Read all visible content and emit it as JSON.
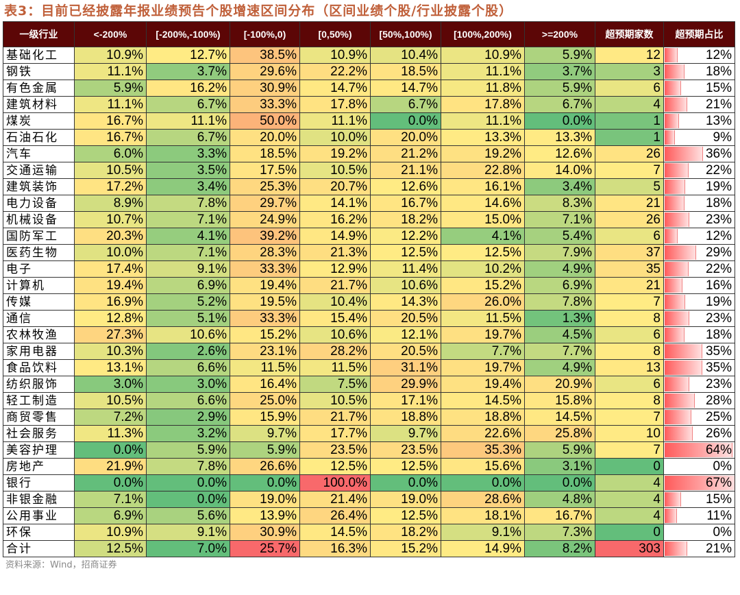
{
  "title": "表3：目前已经披露年报业绩预告个股增速区间分布（区间业绩个股/行业披露个股）",
  "source": "资料来源：Wind，招商证券",
  "colors": {
    "header_bg": "#5C0606",
    "scale_low": "#63BE7B",
    "scale_mid": "#FFEB84",
    "scale_high": "#F8696B",
    "bar": "#FF5A5A"
  },
  "headers": [
    "一级行业",
    "<-200%",
    "[-200%,-100%)",
    "[-100%,0)",
    "[0,50%)",
    "[50%,100%)",
    "[100%,200%)",
    ">=200%",
    "超预期家数",
    "超预期占比"
  ],
  "rows": [
    [
      "基础化工",
      "10.9%",
      "12.7%",
      "38.5%",
      "10.9%",
      "10.4%",
      "10.9%",
      "5.9%",
      "12",
      "12%"
    ],
    [
      "钢铁",
      "11.1%",
      "3.7%",
      "29.6%",
      "22.2%",
      "18.5%",
      "11.1%",
      "3.7%",
      "3",
      "18%"
    ],
    [
      "有色金属",
      "5.9%",
      "16.2%",
      "30.9%",
      "14.7%",
      "14.7%",
      "11.8%",
      "5.9%",
      "6",
      "15%"
    ],
    [
      "建筑材料",
      "11.1%",
      "6.7%",
      "33.3%",
      "17.8%",
      "6.7%",
      "17.8%",
      "6.7%",
      "4",
      "21%"
    ],
    [
      "煤炭",
      "16.7%",
      "11.1%",
      "50.0%",
      "11.1%",
      "0.0%",
      "11.1%",
      "0.0%",
      "1",
      "13%"
    ],
    [
      "石油石化",
      "16.7%",
      "6.7%",
      "20.0%",
      "10.0%",
      "20.0%",
      "13.3%",
      "13.3%",
      "1",
      "9%"
    ],
    [
      "汽车",
      "6.0%",
      "3.3%",
      "18.5%",
      "19.2%",
      "21.2%",
      "19.2%",
      "12.6%",
      "26",
      "36%"
    ],
    [
      "交通运输",
      "10.5%",
      "3.5%",
      "17.5%",
      "10.5%",
      "21.1%",
      "22.8%",
      "14.0%",
      "7",
      "22%"
    ],
    [
      "建筑装饰",
      "17.2%",
      "3.4%",
      "25.3%",
      "20.7%",
      "12.6%",
      "16.1%",
      "3.4%",
      "5",
      "19%"
    ],
    [
      "电力设备",
      "8.9%",
      "7.8%",
      "29.7%",
      "14.1%",
      "16.7%",
      "14.6%",
      "8.3%",
      "21",
      "18%"
    ],
    [
      "机械设备",
      "10.7%",
      "7.1%",
      "24.9%",
      "16.2%",
      "18.2%",
      "15.0%",
      "7.1%",
      "26",
      "23%"
    ],
    [
      "国防军工",
      "20.3%",
      "4.1%",
      "39.2%",
      "14.9%",
      "12.2%",
      "4.1%",
      "5.4%",
      "6",
      "12%"
    ],
    [
      "医药生物",
      "10.0%",
      "7.1%",
      "28.3%",
      "21.3%",
      "12.5%",
      "12.5%",
      "7.9%",
      "37",
      "29%"
    ],
    [
      "电子",
      "17.4%",
      "9.1%",
      "33.3%",
      "12.9%",
      "11.4%",
      "10.2%",
      "4.9%",
      "35",
      "22%"
    ],
    [
      "计算机",
      "19.4%",
      "6.9%",
      "19.4%",
      "21.7%",
      "10.6%",
      "15.2%",
      "6.9%",
      "21",
      "16%"
    ],
    [
      "传媒",
      "16.9%",
      "5.2%",
      "19.5%",
      "10.4%",
      "14.3%",
      "26.0%",
      "7.8%",
      "7",
      "19%"
    ],
    [
      "通信",
      "12.8%",
      "5.1%",
      "33.3%",
      "15.4%",
      "20.5%",
      "11.5%",
      "1.3%",
      "8",
      "23%"
    ],
    [
      "农林牧渔",
      "27.3%",
      "10.6%",
      "15.2%",
      "10.6%",
      "12.1%",
      "19.7%",
      "4.5%",
      "6",
      "18%"
    ],
    [
      "家用电器",
      "10.3%",
      "2.6%",
      "23.1%",
      "28.2%",
      "20.5%",
      "7.7%",
      "7.7%",
      "8",
      "35%"
    ],
    [
      "食品饮料",
      "13.1%",
      "6.6%",
      "11.5%",
      "11.5%",
      "31.1%",
      "19.7%",
      "4.9%",
      "13",
      "35%"
    ],
    [
      "纺织服饰",
      "3.0%",
      "3.0%",
      "16.4%",
      "7.5%",
      "29.9%",
      "19.4%",
      "20.9%",
      "6",
      "23%"
    ],
    [
      "轻工制造",
      "10.5%",
      "6.6%",
      "25.0%",
      "10.5%",
      "17.1%",
      "14.5%",
      "15.8%",
      "8",
      "28%"
    ],
    [
      "商贸零售",
      "7.2%",
      "2.9%",
      "15.9%",
      "21.7%",
      "18.8%",
      "18.8%",
      "14.5%",
      "7",
      "25%"
    ],
    [
      "社会服务",
      "11.3%",
      "3.2%",
      "9.7%",
      "17.7%",
      "9.7%",
      "22.6%",
      "25.8%",
      "10",
      "26%"
    ],
    [
      "美容护理",
      "0.0%",
      "5.9%",
      "5.9%",
      "23.5%",
      "23.5%",
      "35.3%",
      "5.9%",
      "7",
      "64%"
    ],
    [
      "房地产",
      "21.9%",
      "7.8%",
      "26.6%",
      "12.5%",
      "12.5%",
      "15.6%",
      "3.1%",
      "0",
      "0%"
    ],
    [
      "银行",
      "0.0%",
      "0.0%",
      "0.0%",
      "100.0%",
      "0.0%",
      "0.0%",
      "0.0%",
      "4",
      "67%"
    ],
    [
      "非银金融",
      "7.1%",
      "0.0%",
      "19.0%",
      "21.4%",
      "19.0%",
      "28.6%",
      "4.8%",
      "4",
      "15%"
    ],
    [
      "公用事业",
      "6.9%",
      "5.6%",
      "13.9%",
      "26.4%",
      "12.5%",
      "18.1%",
      "16.7%",
      "4",
      "11%"
    ],
    [
      "环保",
      "10.9%",
      "9.1%",
      "30.9%",
      "14.5%",
      "18.2%",
      "9.1%",
      "7.3%",
      "0",
      "0%"
    ],
    [
      "合计",
      "12.5%",
      "7.0%",
      "25.7%",
      "16.3%",
      "15.2%",
      "14.9%",
      "8.2%",
      "303",
      "21%"
    ]
  ]
}
